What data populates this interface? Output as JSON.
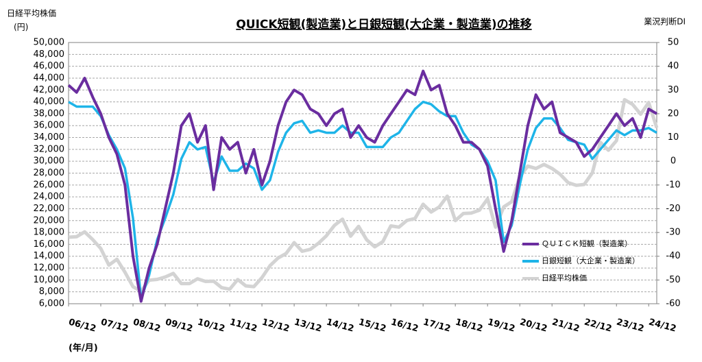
{
  "chart_data": {
    "type": "line",
    "title": "QUICK短観(製造業)と日銀短観(大企業・製造業)の推移",
    "ylabel": "日経平均株価",
    "yunit": "(円)",
    "y2label": "業況判断DI",
    "xlabel": "(年/月)",
    "categories": [
      "06/12",
      null,
      null,
      null,
      "07/12",
      null,
      null,
      null,
      "08/12",
      null,
      null,
      null,
      "09/12",
      null,
      null,
      null,
      "10/12",
      null,
      null,
      null,
      "11/12",
      null,
      null,
      null,
      "12/12",
      null,
      null,
      null,
      "13/12",
      null,
      null,
      null,
      "14/12",
      null,
      null,
      null,
      "15/12",
      null,
      null,
      null,
      "16/12",
      null,
      null,
      null,
      "17/12",
      null,
      null,
      null,
      "18/12",
      null,
      null,
      null,
      "19/12",
      null,
      null,
      null,
      "20/12",
      null,
      null,
      null,
      "21/12",
      null,
      null,
      null,
      "22/12",
      null,
      null,
      null,
      "23/12",
      null,
      null,
      null,
      "24/12",
      null
    ],
    "series": [
      {
        "name": "日経平均株価",
        "color": "#d3d3d3",
        "axis": "y",
        "values": [
          17200,
          17300,
          18100,
          16800,
          15300,
          12500,
          13500,
          11300,
          8860,
          8100,
          9960,
          10100,
          10500,
          11100,
          9400,
          9400,
          10200,
          9750,
          9800,
          8700,
          8450,
          10080,
          9000,
          8870,
          10400,
          12400,
          13700,
          14450,
          16290,
          14830,
          15160,
          16170,
          17450,
          19200,
          20240,
          17390,
          19030,
          16760,
          15580,
          16450,
          19110,
          18900,
          20030,
          20360,
          22760,
          21450,
          22300,
          24120,
          20010,
          21200,
          21280,
          21760,
          23660,
          18900,
          22290,
          23180,
          27440,
          29180,
          28790,
          29450,
          28790,
          27820,
          26390,
          25940,
          26090,
          28040,
          33190,
          31860,
          33460,
          40370,
          39580,
          37920,
          39890,
          35620
        ]
      },
      {
        "name": "日銀短観（大企業・製造業）",
        "color": "#1eb4e8",
        "axis": "y2",
        "values": [
          25,
          23,
          23,
          23,
          19,
          11,
          5,
          -3,
          -24,
          -58,
          -48,
          -33,
          -24,
          -14,
          1,
          8,
          5,
          6,
          -9,
          2,
          -4,
          -4,
          -1,
          -3,
          -12,
          -8,
          4,
          12,
          16,
          17,
          12,
          13,
          12,
          12,
          15,
          12,
          12,
          6,
          6,
          6,
          10,
          12,
          17,
          22,
          25,
          24,
          21,
          19,
          19,
          12,
          7,
          5,
          0,
          -8,
          -34,
          -27,
          -10,
          5,
          14,
          18,
          18,
          14,
          9,
          8,
          7,
          1,
          5,
          9,
          13,
          11,
          13,
          13,
          14,
          12
        ]
      },
      {
        "name": "ＱＵＩＣＫ短観（製造業）",
        "color": "#6a2d9f",
        "axis": "y2",
        "values": [
          32,
          29,
          35,
          27,
          20,
          10,
          3,
          -10,
          -40,
          -59,
          -45,
          -35,
          -20,
          -5,
          15,
          20,
          8,
          15,
          -12,
          10,
          5,
          8,
          -5,
          5,
          -10,
          0,
          15,
          25,
          30,
          28,
          22,
          20,
          15,
          20,
          22,
          10,
          15,
          10,
          8,
          15,
          20,
          25,
          30,
          28,
          38,
          30,
          32,
          20,
          15,
          8,
          8,
          5,
          -2,
          -20,
          -38,
          -25,
          -5,
          15,
          28,
          22,
          25,
          12,
          10,
          8,
          2,
          5,
          10,
          15,
          20,
          15,
          18,
          10,
          22,
          20
        ]
      }
    ],
    "ylim": [
      6000,
      50000
    ],
    "yticks": [
      {
        "value": 6000,
        "label": "6,000"
      },
      {
        "value": 8000,
        "label": "8,000"
      },
      {
        "value": 10000,
        "label": "10,000"
      },
      {
        "value": 12000,
        "label": "12,000"
      },
      {
        "value": 14000,
        "label": "14,000"
      },
      {
        "value": 16000,
        "label": "16,000"
      },
      {
        "value": 18000,
        "label": "18,000"
      },
      {
        "value": 20000,
        "label": "20,000"
      },
      {
        "value": 22000,
        "label": "22,000"
      },
      {
        "value": 24000,
        "label": "24,000"
      },
      {
        "value": 26000,
        "label": "26,000"
      },
      {
        "value": 28000,
        "label": "28,000"
      },
      {
        "value": 30000,
        "label": "30,000"
      },
      {
        "value": 32000,
        "label": "32,000"
      },
      {
        "value": 34000,
        "label": "34,000"
      },
      {
        "value": 36000,
        "label": "36,000"
      },
      {
        "value": 38000,
        "label": "38,000"
      },
      {
        "value": 40000,
        "label": "40,000"
      },
      {
        "value": 42000,
        "label": "42,000"
      },
      {
        "value": 44000,
        "label": "44,000"
      },
      {
        "value": 46000,
        "label": "46,000"
      },
      {
        "value": 48000,
        "label": "48,000"
      },
      {
        "value": 50000,
        "label": "50,000"
      }
    ],
    "y2lim": [
      -60,
      50
    ],
    "y2ticks": [
      -60,
      -50,
      -40,
      -30,
      -20,
      -10,
      0,
      10,
      20,
      30,
      40,
      50
    ],
    "grid": true
  }
}
